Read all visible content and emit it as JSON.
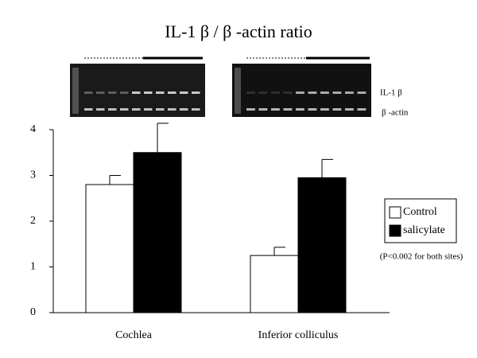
{
  "chart_data": {
    "type": "bar",
    "title": "IL-1 β / β -actin ratio",
    "categories": [
      "Cochlea",
      "Inferior colliculus"
    ],
    "series": [
      {
        "name": "Control",
        "color": "#ffffff",
        "values": [
          2.8,
          1.25
        ],
        "errors": [
          0.2,
          0.18
        ]
      },
      {
        "name": "salicylate",
        "color": "#000000",
        "values": [
          3.5,
          2.95
        ],
        "errors": [
          0.64,
          0.4
        ]
      }
    ],
    "ylim": [
      0,
      4
    ],
    "yticks": [
      0,
      1,
      2,
      3,
      4
    ],
    "gel_labels": [
      "IL-1 β",
      "β -actin"
    ],
    "annotation": "(P<0.002 for both sites)"
  }
}
